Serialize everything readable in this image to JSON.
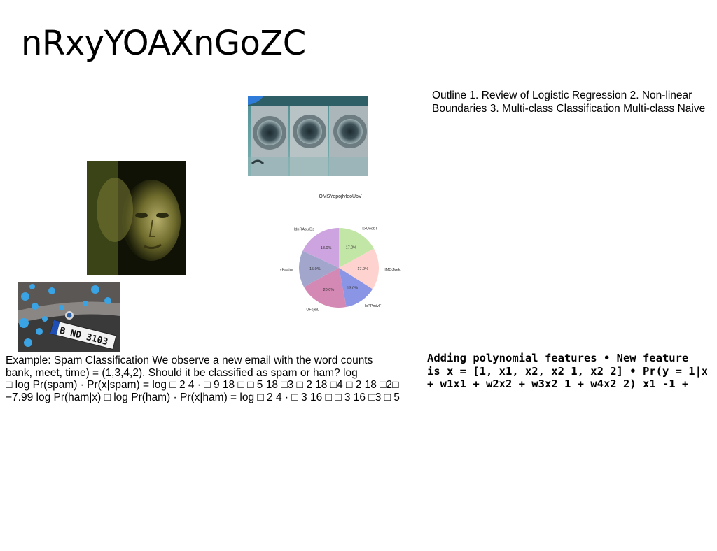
{
  "slide": {
    "title": "nRxyYOAXnGoZC",
    "outline_lines": [
      "Outline 1. Review of Logistic Regression 2. Non-linear",
      "Boundaries 3. Multi-class Classification Multi-class Naive"
    ],
    "example_lines": [
      "Example: Spam Classification We observe a new email with the word counts",
      "bank, meet, time) = (1,3,4,2). Should it be classified as spam or ham? log",
      "□ log Pr(spam) · Pr(x|spam) = log □ 2 4 · □ 9 18 □ □ 5 18 □3 □ 2 18 □4 □ 2 18 □2□",
      "−7.99 log Pr(ham|x) □ log Pr(ham) · Pr(x|ham) = log □ 2 4 · □ 3 16 □ □ 3 16 □3 □ 5"
    ],
    "poly_lines": [
      "Adding polynomial features • New feature",
      "is x = [1, x1, x2, x2 1, x2 2] • Pr(y = 1|x) =",
      "+ w1x1 + w2x2 + w3x2 1 + w4x2 2) x1 -1 +"
    ]
  },
  "images": {
    "laundry": "washing-machines-photo",
    "portrait": "face-portrait-photo",
    "car": "car-license-plate-photo",
    "car_plate_text": "B ND 3103"
  },
  "chart_data": {
    "type": "pie",
    "title": "OMSYepojlvleoUbV",
    "categories": [
      "kxUoqbT",
      "lMQJVek",
      "lbPPmivF",
      "UFsjeiL",
      "vKaaire",
      "ldnRAsujDs"
    ],
    "values": [
      17.0,
      17.0,
      13.0,
      20.0,
      15.0,
      18.0
    ],
    "value_labels": [
      "17.0%",
      "17.0%",
      "13.0%",
      "20.0%",
      "15.0%",
      "18.0%"
    ],
    "colors": [
      "#c2e6a6",
      "#fed3cf",
      "#8b95e6",
      "#d488b4",
      "#a2a6cd",
      "#cda4e0"
    ],
    "start_angle_deg": 90,
    "direction": "clockwise"
  }
}
